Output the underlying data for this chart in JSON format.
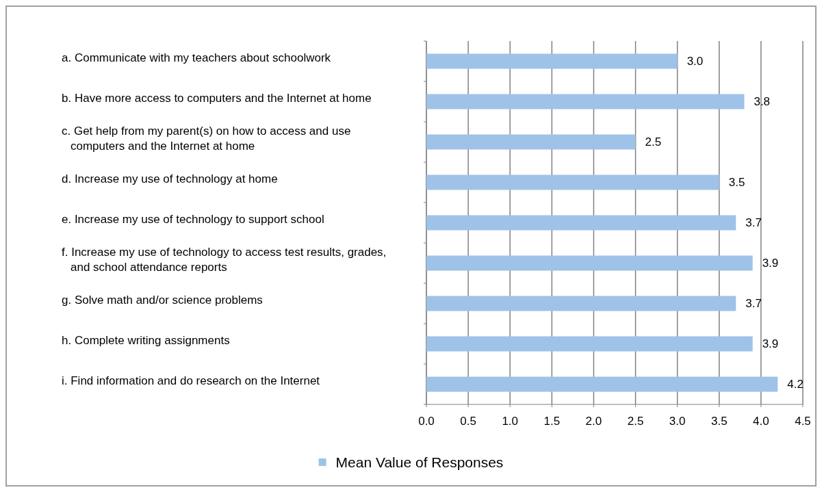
{
  "chart_data": {
    "type": "bar",
    "orientation": "horizontal",
    "categories": [
      "a.  Communicate with my teachers about schoolwork",
      "b.  Have more access to computers and the Internet at home",
      "c.  Get help from my parent(s) on how to access and use computers and the Internet at home",
      "d.  Increase my use of technology at home",
      "e.  Increase my use of technology to support school",
      "f.  Increase my use of technology to access test results, grades, and school attendance reports",
      "g.  Solve math and/or science problems",
      "h.  Complete writing assignments",
      "i.  Find information and do research on the Internet"
    ],
    "series": [
      {
        "name": "Mean Value of Responses",
        "color": "#9fc2e8",
        "values": [
          3.0,
          3.8,
          2.5,
          3.5,
          3.7,
          3.9,
          3.7,
          3.9,
          4.2
        ],
        "value_labels": [
          "3.0",
          "3.8",
          "2.5",
          "3.5",
          "3.7",
          "3.9",
          "3.7",
          "3.9",
          "4.2"
        ]
      }
    ],
    "xlim": [
      0,
      4.5
    ],
    "xticks": [
      {
        "value": 0,
        "label": "0.0"
      },
      {
        "value": 0.5,
        "label": "0.5"
      },
      {
        "value": 1,
        "label": "1.0"
      },
      {
        "value": 1.5,
        "label": "1.5"
      },
      {
        "value": 2,
        "label": "2.0"
      },
      {
        "value": 2.5,
        "label": "2.5"
      },
      {
        "value": 3,
        "label": "3.0"
      },
      {
        "value": 3.5,
        "label": "3.5"
      },
      {
        "value": 4,
        "label": "4.0"
      },
      {
        "value": 4.5,
        "label": "4.5"
      }
    ],
    "grid": "x",
    "legend": "bottom"
  }
}
